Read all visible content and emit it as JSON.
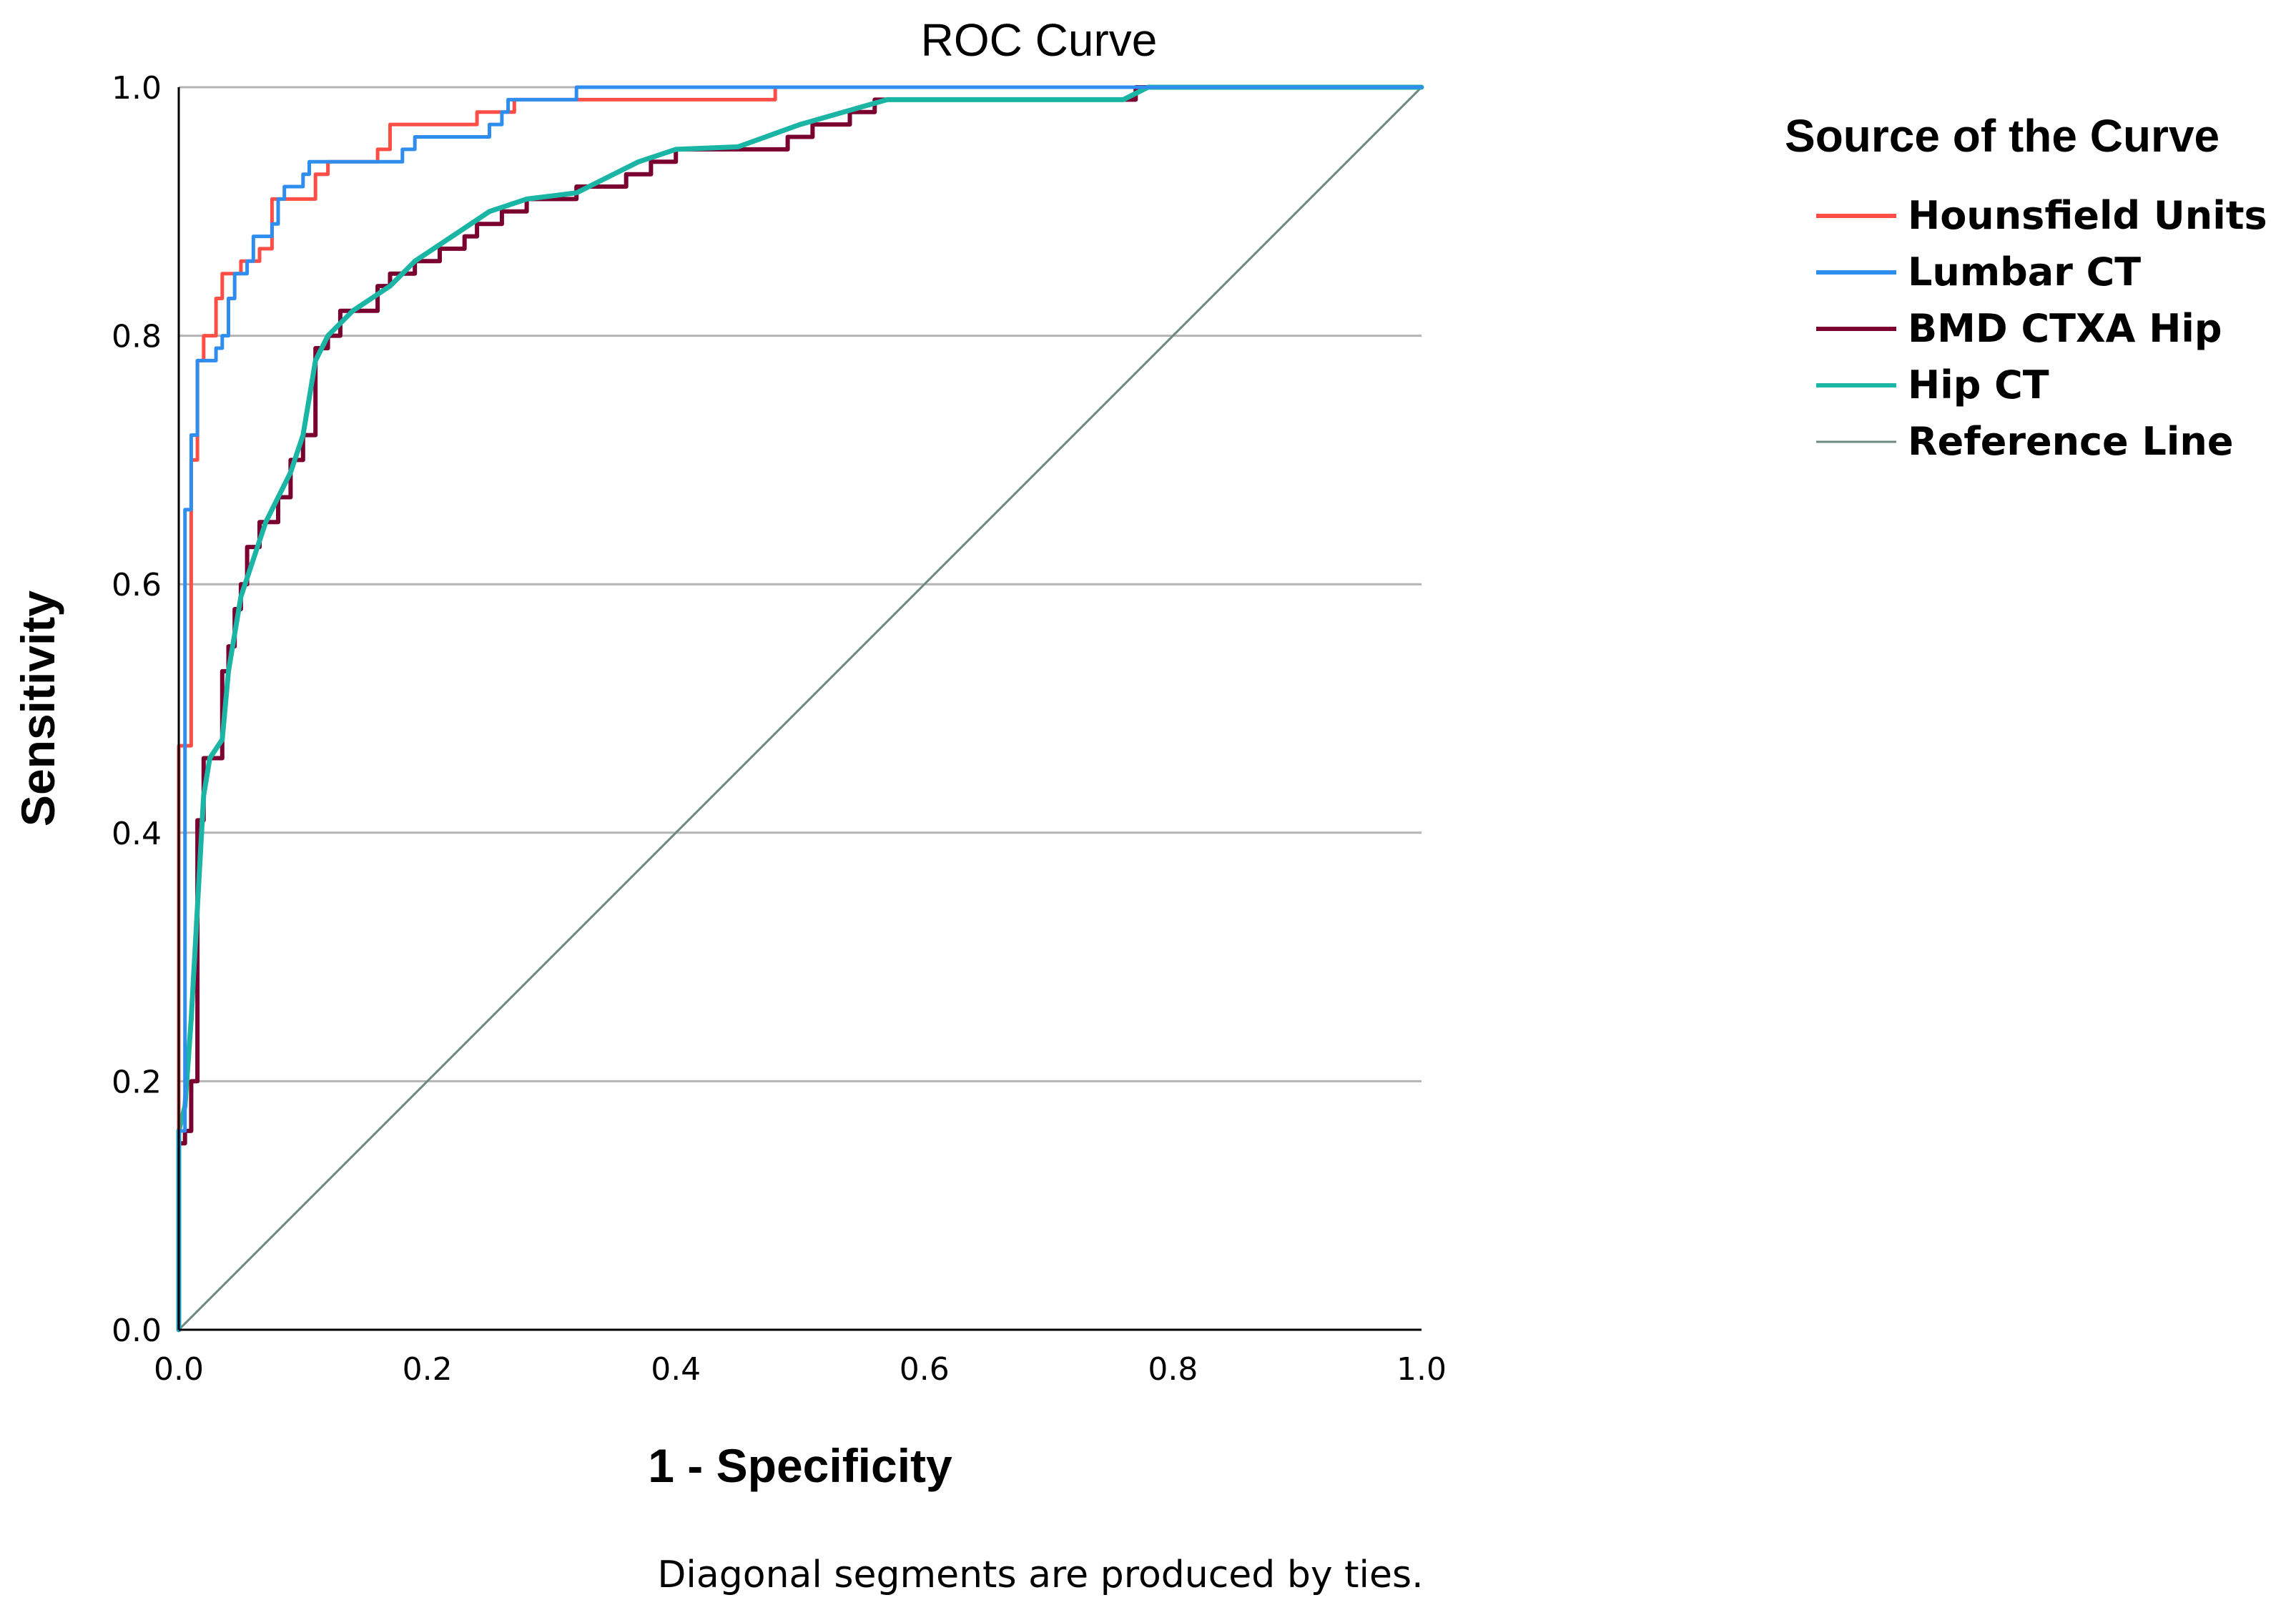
{
  "chart_data": {
    "type": "line",
    "title": "ROC Curve",
    "xlabel": "1 - Specificity",
    "ylabel": "Sensitivity",
    "xlim": [
      0,
      1
    ],
    "ylim": [
      0,
      1
    ],
    "x_ticks": [
      "0.0",
      "0.2",
      "0.4",
      "0.6",
      "0.8",
      "1.0"
    ],
    "y_ticks": [
      "0.0",
      "0.2",
      "0.4",
      "0.6",
      "0.8",
      "1.0"
    ],
    "grid": "horizontal",
    "legend_title": "Source of the Curve",
    "legend_position": "right",
    "footnote": "Diagonal segments are produced by ties.",
    "series": [
      {
        "name": "Hounsfield Units",
        "color": "#ff4e45",
        "points": [
          [
            0,
            0
          ],
          [
            0,
            0.47
          ],
          [
            0.01,
            0.47
          ],
          [
            0.01,
            0.7
          ],
          [
            0.015,
            0.7
          ],
          [
            0.015,
            0.78
          ],
          [
            0.02,
            0.78
          ],
          [
            0.02,
            0.8
          ],
          [
            0.03,
            0.8
          ],
          [
            0.03,
            0.83
          ],
          [
            0.035,
            0.83
          ],
          [
            0.035,
            0.85
          ],
          [
            0.05,
            0.85
          ],
          [
            0.05,
            0.86
          ],
          [
            0.065,
            0.86
          ],
          [
            0.065,
            0.87
          ],
          [
            0.075,
            0.87
          ],
          [
            0.075,
            0.91
          ],
          [
            0.11,
            0.91
          ],
          [
            0.11,
            0.93
          ],
          [
            0.12,
            0.93
          ],
          [
            0.12,
            0.94
          ],
          [
            0.16,
            0.94
          ],
          [
            0.16,
            0.95
          ],
          [
            0.17,
            0.95
          ],
          [
            0.17,
            0.97
          ],
          [
            0.24,
            0.97
          ],
          [
            0.24,
            0.98
          ],
          [
            0.27,
            0.98
          ],
          [
            0.27,
            0.99
          ],
          [
            0.48,
            0.99
          ],
          [
            0.48,
            1.0
          ],
          [
            1,
            1
          ]
        ]
      },
      {
        "name": "Lumbar CT",
        "color": "#2f8ded",
        "points": [
          [
            0,
            0
          ],
          [
            0,
            0.16
          ],
          [
            0.005,
            0.16
          ],
          [
            0.005,
            0.66
          ],
          [
            0.01,
            0.66
          ],
          [
            0.01,
            0.72
          ],
          [
            0.015,
            0.72
          ],
          [
            0.015,
            0.78
          ],
          [
            0.03,
            0.78
          ],
          [
            0.03,
            0.79
          ],
          [
            0.035,
            0.79
          ],
          [
            0.035,
            0.8
          ],
          [
            0.04,
            0.8
          ],
          [
            0.04,
            0.83
          ],
          [
            0.045,
            0.83
          ],
          [
            0.045,
            0.85
          ],
          [
            0.055,
            0.85
          ],
          [
            0.055,
            0.86
          ],
          [
            0.06,
            0.86
          ],
          [
            0.06,
            0.88
          ],
          [
            0.075,
            0.88
          ],
          [
            0.075,
            0.89
          ],
          [
            0.08,
            0.89
          ],
          [
            0.08,
            0.91
          ],
          [
            0.085,
            0.91
          ],
          [
            0.085,
            0.92
          ],
          [
            0.1,
            0.92
          ],
          [
            0.1,
            0.93
          ],
          [
            0.105,
            0.93
          ],
          [
            0.105,
            0.94
          ],
          [
            0.18,
            0.94
          ],
          [
            0.18,
            0.95
          ],
          [
            0.19,
            0.95
          ],
          [
            0.19,
            0.96
          ],
          [
            0.25,
            0.96
          ],
          [
            0.25,
            0.97
          ],
          [
            0.26,
            0.97
          ],
          [
            0.26,
            0.98
          ],
          [
            0.265,
            0.98
          ],
          [
            0.265,
            0.99
          ],
          [
            0.32,
            0.99
          ],
          [
            0.32,
            1.0
          ],
          [
            1,
            1
          ]
        ]
      },
      {
        "name": "BMD CTXA Hip",
        "color": "#7a0030",
        "points": [
          [
            0,
            0
          ],
          [
            0,
            0.15
          ],
          [
            0.005,
            0.15
          ],
          [
            0.005,
            0.16
          ],
          [
            0.01,
            0.16
          ],
          [
            0.01,
            0.2
          ],
          [
            0.015,
            0.2
          ],
          [
            0.015,
            0.41
          ],
          [
            0.02,
            0.41
          ],
          [
            0.02,
            0.46
          ],
          [
            0.035,
            0.46
          ],
          [
            0.035,
            0.53
          ],
          [
            0.04,
            0.53
          ],
          [
            0.04,
            0.55
          ],
          [
            0.045,
            0.55
          ],
          [
            0.045,
            0.58
          ],
          [
            0.05,
            0.58
          ],
          [
            0.05,
            0.6
          ],
          [
            0.055,
            0.6
          ],
          [
            0.055,
            0.63
          ],
          [
            0.065,
            0.63
          ],
          [
            0.065,
            0.65
          ],
          [
            0.08,
            0.65
          ],
          [
            0.08,
            0.67
          ],
          [
            0.09,
            0.67
          ],
          [
            0.09,
            0.7
          ],
          [
            0.1,
            0.7
          ],
          [
            0.1,
            0.72
          ],
          [
            0.11,
            0.72
          ],
          [
            0.11,
            0.79
          ],
          [
            0.12,
            0.79
          ],
          [
            0.12,
            0.8
          ],
          [
            0.13,
            0.8
          ],
          [
            0.13,
            0.82
          ],
          [
            0.16,
            0.82
          ],
          [
            0.16,
            0.84
          ],
          [
            0.17,
            0.84
          ],
          [
            0.17,
            0.85
          ],
          [
            0.19,
            0.85
          ],
          [
            0.19,
            0.86
          ],
          [
            0.21,
            0.86
          ],
          [
            0.21,
            0.87
          ],
          [
            0.23,
            0.87
          ],
          [
            0.23,
            0.88
          ],
          [
            0.24,
            0.88
          ],
          [
            0.24,
            0.89
          ],
          [
            0.26,
            0.89
          ],
          [
            0.26,
            0.9
          ],
          [
            0.28,
            0.9
          ],
          [
            0.28,
            0.91
          ],
          [
            0.32,
            0.91
          ],
          [
            0.32,
            0.92
          ],
          [
            0.36,
            0.92
          ],
          [
            0.36,
            0.93
          ],
          [
            0.38,
            0.93
          ],
          [
            0.38,
            0.94
          ],
          [
            0.4,
            0.94
          ],
          [
            0.4,
            0.95
          ],
          [
            0.49,
            0.95
          ],
          [
            0.49,
            0.96
          ],
          [
            0.51,
            0.96
          ],
          [
            0.51,
            0.97
          ],
          [
            0.54,
            0.97
          ],
          [
            0.54,
            0.98
          ],
          [
            0.56,
            0.98
          ],
          [
            0.56,
            0.99
          ],
          [
            0.77,
            0.99
          ],
          [
            0.77,
            1.0
          ],
          [
            1,
            1
          ]
        ]
      },
      {
        "name": "Hip CT",
        "color": "#1ab5a4",
        "points": [
          [
            0,
            0
          ],
          [
            0,
            0.16
          ],
          [
            0.005,
            0.18
          ],
          [
            0.01,
            0.25
          ],
          [
            0.015,
            0.34
          ],
          [
            0.02,
            0.43
          ],
          [
            0.025,
            0.46
          ],
          [
            0.035,
            0.475
          ],
          [
            0.04,
            0.53
          ],
          [
            0.045,
            0.56
          ],
          [
            0.05,
            0.59
          ],
          [
            0.06,
            0.62
          ],
          [
            0.07,
            0.65
          ],
          [
            0.08,
            0.67
          ],
          [
            0.09,
            0.69
          ],
          [
            0.1,
            0.72
          ],
          [
            0.11,
            0.78
          ],
          [
            0.12,
            0.8
          ],
          [
            0.14,
            0.82
          ],
          [
            0.17,
            0.84
          ],
          [
            0.19,
            0.86
          ],
          [
            0.22,
            0.88
          ],
          [
            0.25,
            0.9
          ],
          [
            0.28,
            0.91
          ],
          [
            0.32,
            0.915
          ],
          [
            0.37,
            0.94
          ],
          [
            0.4,
            0.95
          ],
          [
            0.45,
            0.952
          ],
          [
            0.5,
            0.97
          ],
          [
            0.57,
            0.99
          ],
          [
            0.76,
            0.99
          ],
          [
            0.78,
            1.0
          ],
          [
            1,
            1
          ]
        ]
      },
      {
        "name": "Reference Line",
        "color": "#6e8a80",
        "points": [
          [
            0,
            0
          ],
          [
            1,
            1
          ]
        ]
      }
    ]
  }
}
